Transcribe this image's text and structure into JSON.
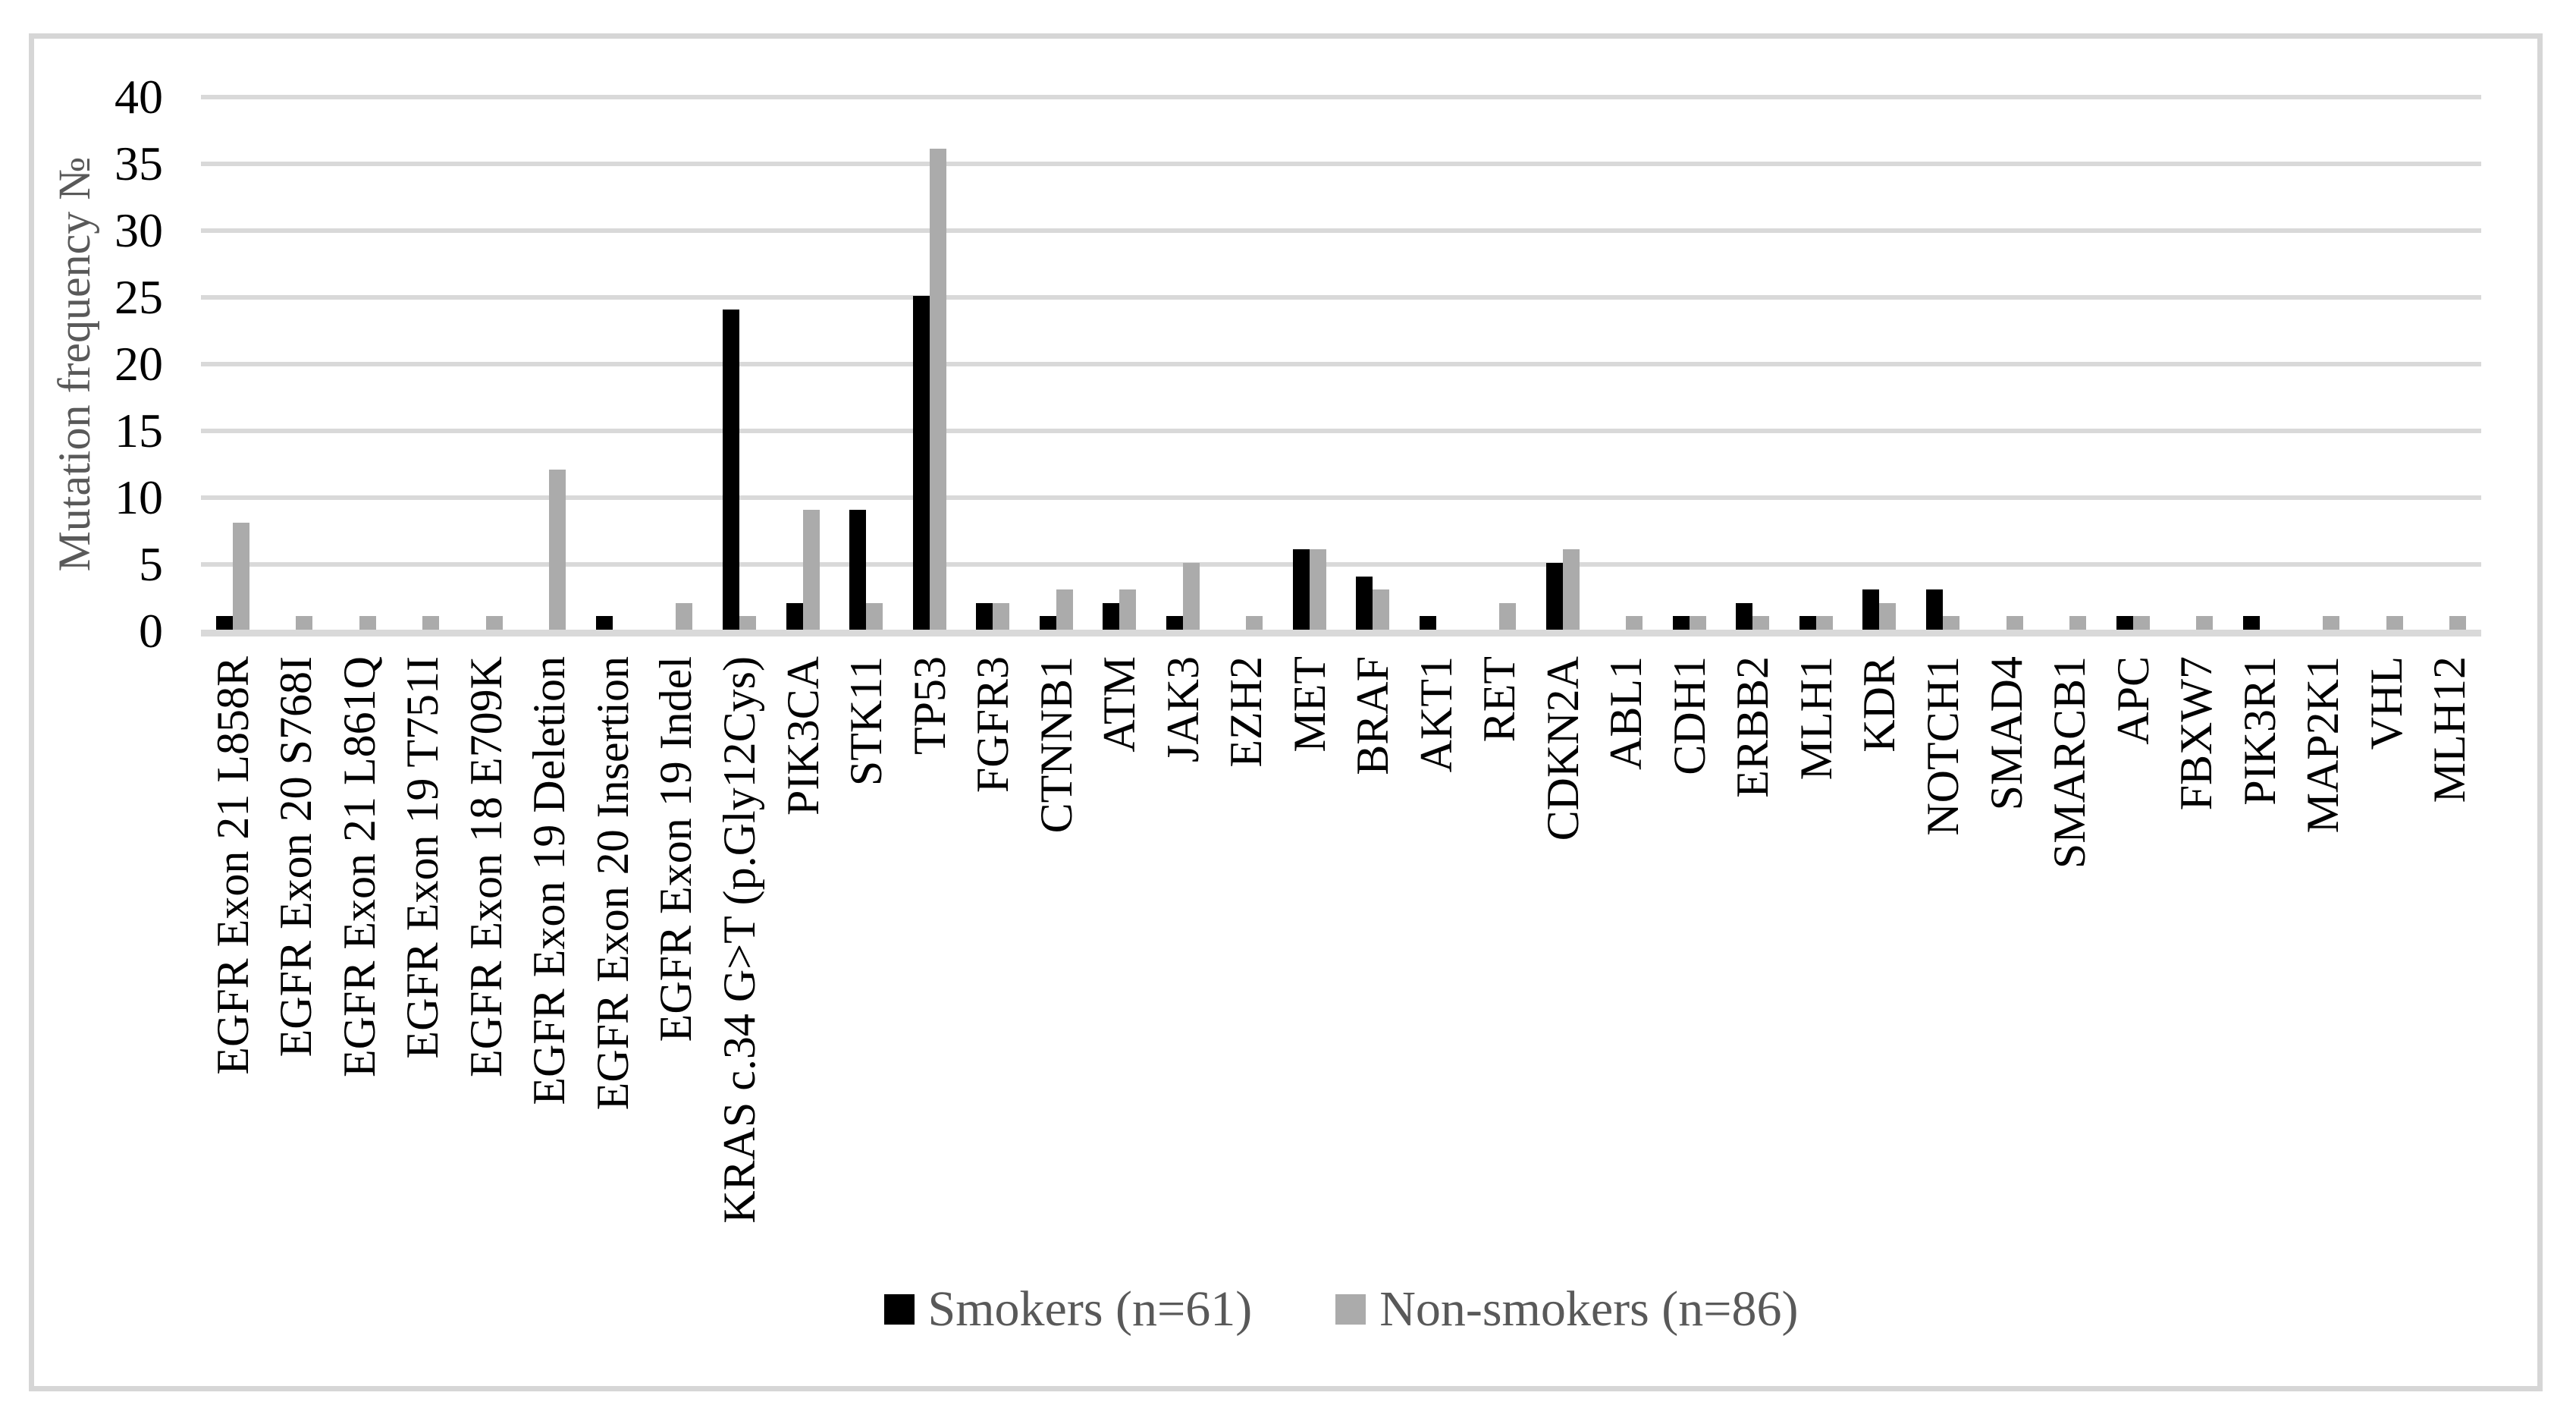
{
  "figure": {
    "background": "#ffffff",
    "border_color": "#d6d6d6"
  },
  "colors": {
    "gridline": "#d9d9d9",
    "axis_line": "#d9d9d9",
    "tick_label": "#000000",
    "category_label": "#000000",
    "axis_title": "#595959",
    "legend_text": "#595959",
    "smokers_bar": "#000000",
    "non_smokers_bar": "#ababab"
  },
  "chart_data": {
    "type": "bar",
    "title": "",
    "xlabel": "",
    "ylabel": "Mutation frequency №",
    "ylim": [
      0,
      40
    ],
    "ytick_step": 5,
    "yticks": [
      0,
      5,
      10,
      15,
      20,
      25,
      30,
      35,
      40
    ],
    "grid": true,
    "legend_position": "bottom-center",
    "categories": [
      "EGFR Exon 21 L858R",
      "EGFR Exon 20 S768I",
      "EGFR Exon 21 L861Q",
      "EGFR Exon 19 T751I",
      "EGFR Exon 18 E709K",
      "EGFR Exon 19 Deletion",
      "EGFR Exon 20 Insertion",
      "EGFR Exon 19 Indel",
      "KRAS c.34 G>T (p.Gly12Cys)",
      "PIK3CA",
      "STK11",
      "TP53",
      "FGFR3",
      "CTNNB1",
      "ATM",
      "JAK3",
      "EZH2",
      "MET",
      "BRAF",
      "AKT1",
      "RET",
      "CDKN2A",
      "ABL1",
      "CDH1",
      "ERBB2",
      "MLH1",
      "KDR",
      "NOTCH1",
      "SMAD4",
      "SMARCB1",
      "APC",
      "FBXW7",
      "PIK3R1",
      "MAP2K1",
      "VHL",
      "MLH12"
    ],
    "series": [
      {
        "name": "Smokers (n=61)",
        "color": "#000000",
        "values": [
          1,
          0,
          0,
          0,
          0,
          0,
          1,
          0,
          24,
          2,
          9,
          25,
          2,
          1,
          2,
          1,
          0,
          6,
          4,
          1,
          0,
          5,
          0,
          1,
          2,
          1,
          3,
          3,
          0,
          0,
          1,
          0,
          1,
          0,
          0,
          0
        ]
      },
      {
        "name": "Non-smokers (n=86)",
        "color": "#ababab",
        "values": [
          8,
          1,
          1,
          1,
          1,
          12,
          0,
          2,
          1,
          9,
          2,
          36,
          2,
          3,
          3,
          5,
          1,
          6,
          3,
          0,
          2,
          6,
          1,
          1,
          1,
          1,
          2,
          1,
          1,
          1,
          1,
          1,
          0,
          1,
          1,
          1
        ]
      }
    ]
  }
}
